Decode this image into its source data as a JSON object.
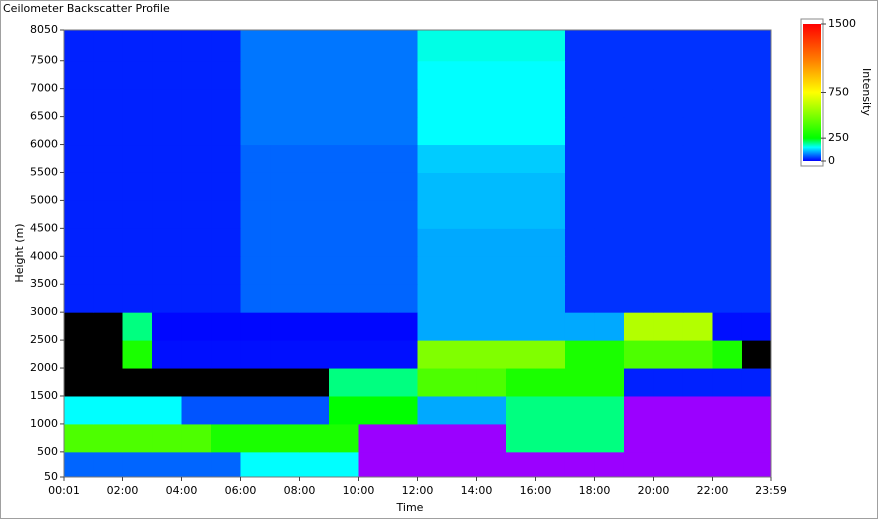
{
  "chart_data": {
    "type": "heatmap",
    "title": "Ceilometer Backscatter Profile",
    "xlabel": "Time",
    "ylabel": "Height (m)",
    "xlim": [
      1,
      1439
    ],
    "ylim": [
      50,
      8050
    ],
    "xticks": [
      {
        "value": 1,
        "label": "00:01"
      },
      {
        "value": 120,
        "label": "02:00"
      },
      {
        "value": 240,
        "label": "04:00"
      },
      {
        "value": 360,
        "label": "06:00"
      },
      {
        "value": 480,
        "label": "08:00"
      },
      {
        "value": 600,
        "label": "10:00"
      },
      {
        "value": 720,
        "label": "12:00"
      },
      {
        "value": 840,
        "label": "14:00"
      },
      {
        "value": 960,
        "label": "16:00"
      },
      {
        "value": 1080,
        "label": "18:00"
      },
      {
        "value": 1200,
        "label": "20:00"
      },
      {
        "value": 1320,
        "label": "22:00"
      },
      {
        "value": 1439,
        "label": "23:59"
      }
    ],
    "yticks": [
      50,
      500,
      1000,
      1500,
      2000,
      2500,
      3000,
      3500,
      4000,
      4500,
      5000,
      5500,
      6000,
      6500,
      7000,
      7500,
      8050
    ],
    "xbins": [
      1,
      60,
      120,
      180,
      240,
      300,
      360,
      420,
      480,
      540,
      600,
      660,
      720,
      780,
      840,
      900,
      960,
      1020,
      1080,
      1140,
      1200,
      1260,
      1320,
      1380,
      1439
    ],
    "ybins": [
      50,
      500,
      1000,
      1500,
      2000,
      2500,
      3000,
      3500,
      4000,
      4500,
      5000,
      5500,
      6000,
      6500,
      7000,
      7500,
      8050
    ],
    "z": [
      [
        60,
        60,
        60,
        60,
        60,
        60,
        150,
        150,
        150,
        150,
        -20,
        -20,
        -20,
        -20,
        -20,
        -20,
        -20,
        -20,
        -20,
        -20,
        -20,
        -20,
        -20,
        -20
      ],
      [
        400,
        400,
        400,
        400,
        400,
        300,
        300,
        300,
        300,
        300,
        -20,
        -20,
        -20,
        -20,
        -20,
        200,
        200,
        200,
        200,
        -20,
        -20,
        -20,
        -20,
        -20
      ],
      [
        150,
        150,
        150,
        150,
        50,
        50,
        50,
        50,
        50,
        250,
        250,
        250,
        100,
        100,
        100,
        200,
        200,
        200,
        200,
        -20,
        -20,
        -20,
        -20,
        -20
      ],
      [
        0,
        0,
        0,
        0,
        0,
        0,
        0,
        0,
        0,
        200,
        200,
        200,
        400,
        400,
        400,
        300,
        300,
        300,
        300,
        20,
        20,
        20,
        20,
        20
      ],
      [
        0,
        0,
        300,
        10,
        10,
        10,
        10,
        10,
        10,
        10,
        10,
        10,
        500,
        500,
        500,
        500,
        500,
        300,
        300,
        400,
        400,
        400,
        300,
        0
      ],
      [
        0,
        0,
        200,
        5,
        5,
        5,
        5,
        5,
        5,
        5,
        5,
        5,
        100,
        100,
        100,
        100,
        100,
        100,
        100,
        600,
        600,
        600,
        10,
        10
      ],
      [
        20,
        20,
        20,
        20,
        20,
        20,
        60,
        60,
        60,
        60,
        60,
        60,
        100,
        100,
        100,
        100,
        100,
        30,
        30,
        30,
        30,
        30,
        30,
        30
      ],
      [
        20,
        20,
        20,
        20,
        20,
        20,
        60,
        60,
        60,
        60,
        60,
        60,
        100,
        100,
        100,
        100,
        100,
        30,
        30,
        30,
        30,
        30,
        30,
        30
      ],
      [
        20,
        20,
        20,
        20,
        20,
        20,
        60,
        60,
        60,
        60,
        60,
        60,
        100,
        100,
        100,
        100,
        100,
        30,
        30,
        30,
        30,
        30,
        30,
        30
      ],
      [
        20,
        20,
        20,
        20,
        20,
        20,
        60,
        60,
        60,
        60,
        60,
        60,
        110,
        110,
        110,
        110,
        110,
        30,
        30,
        30,
        30,
        30,
        30,
        30
      ],
      [
        20,
        20,
        20,
        20,
        20,
        20,
        60,
        60,
        60,
        60,
        60,
        60,
        110,
        110,
        110,
        110,
        110,
        30,
        30,
        30,
        30,
        30,
        30,
        30
      ],
      [
        20,
        20,
        20,
        20,
        20,
        20,
        60,
        60,
        60,
        60,
        60,
        60,
        120,
        120,
        120,
        120,
        120,
        30,
        30,
        30,
        30,
        30,
        30,
        30
      ],
      [
        20,
        20,
        20,
        20,
        20,
        20,
        70,
        70,
        70,
        70,
        70,
        70,
        150,
        150,
        150,
        150,
        150,
        30,
        30,
        30,
        30,
        30,
        30,
        30
      ],
      [
        20,
        20,
        20,
        20,
        20,
        20,
        70,
        70,
        70,
        70,
        70,
        70,
        150,
        150,
        150,
        150,
        150,
        30,
        30,
        30,
        30,
        30,
        30,
        30
      ],
      [
        20,
        20,
        20,
        20,
        20,
        20,
        70,
        70,
        70,
        70,
        70,
        70,
        150,
        150,
        150,
        150,
        150,
        30,
        30,
        30,
        30,
        30,
        30,
        30
      ],
      [
        20,
        20,
        20,
        20,
        20,
        20,
        70,
        70,
        70,
        70,
        70,
        70,
        160,
        160,
        160,
        160,
        160,
        30,
        30,
        30,
        30,
        30,
        30,
        30
      ]
    ],
    "below_color": "#9b00ff",
    "colorbar": {
      "label": "Intensity",
      "lim": [
        0,
        1500
      ],
      "ticks": [
        0,
        250,
        750,
        1500
      ],
      "colorscale": [
        [
          0,
          "#000000"
        ],
        [
          1,
          "#0000ff"
        ],
        [
          150,
          "#00ffff"
        ],
        [
          250,
          "#00ff00"
        ],
        [
          750,
          "#ffff00"
        ],
        [
          1100,
          "#ff8000"
        ],
        [
          1500,
          "#ff0000"
        ]
      ]
    }
  }
}
